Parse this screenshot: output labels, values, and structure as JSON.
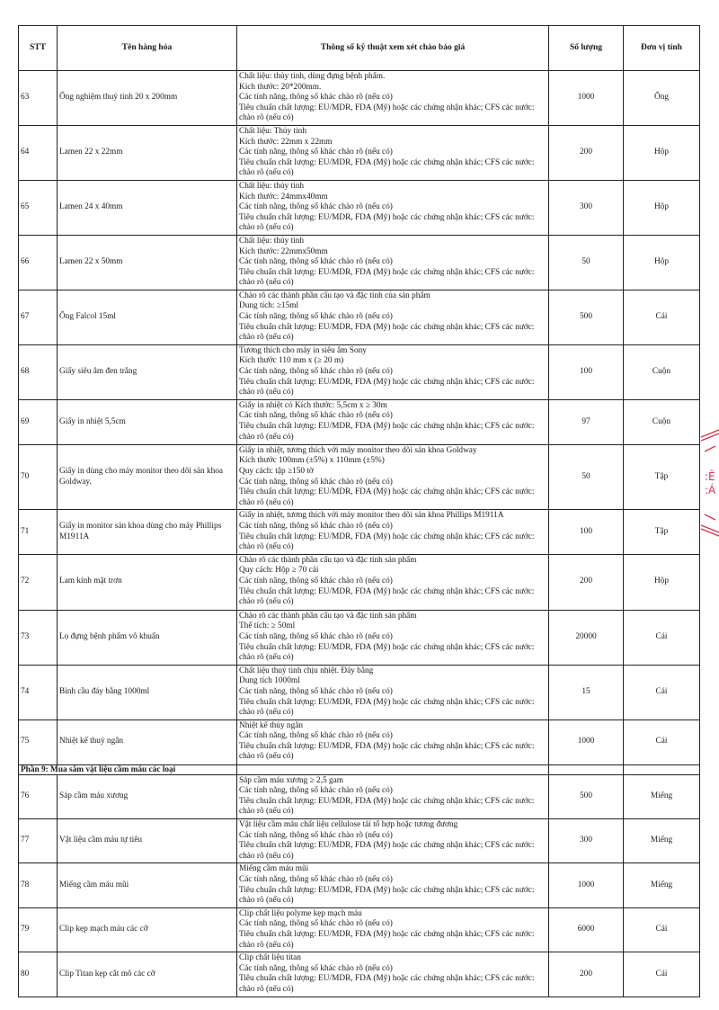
{
  "table": {
    "headers": [
      "STT",
      "Tên hàng hóa",
      "Thông số kỹ thuật xem xét chào báo giá",
      "Số lượng",
      "Đơn vị tính"
    ],
    "rows": [
      {
        "stt": "63",
        "name": "Ống nghiệm thuỷ tinh 20 x 200mm",
        "spec": [
          "Chất liệu: thủy tinh, dùng đựng bệnh phẩm.",
          "Kích thước: 20*200mm.",
          "Các tính năng, thông số khác chào rõ (nếu có)",
          "Tiêu chuẩn chất lượng: EU/MDR, FDA (Mỹ) hoặc các chứng nhận khác; CFS các nước: chào rõ (nếu có)"
        ],
        "qty": "1000",
        "unit": "Ống"
      },
      {
        "stt": "64",
        "name": "Lamen 22 x 22mm",
        "spec": [
          "Chất liệu: Thủy tinh",
          "Kích thước: 22mm x 22mm",
          "Các tính năng, thông số khác chào rõ (nếu có)",
          "Tiêu chuẩn chất lượng: EU/MDR, FDA (Mỹ) hoặc các chứng nhận khác; CFS các nước: chào rõ (nếu có)"
        ],
        "qty": "200",
        "unit": "Hộp"
      },
      {
        "stt": "65",
        "name": "Lamen 24 x 40mm",
        "spec": [
          "Chất liệu: thủy tinh",
          "Kích thước: 24mmx40mm",
          "Các tính năng, thông số khác chào rõ (nếu có)",
          "Tiêu chuẩn chất lượng: EU/MDR, FDA (Mỹ) hoặc các chứng nhận khác; CFS các nước: chào rõ (nếu có)"
        ],
        "qty": "300",
        "unit": "Hộp"
      },
      {
        "stt": "66",
        "name": "Lamen 22 x 50mm",
        "spec": [
          "Chất liệu: thủy tinh",
          "Kích thước: 22mmx50mm",
          "Các tính năng, thông số khác chào rõ (nếu có)",
          "Tiêu chuẩn chất lượng: EU/MDR, FDA (Mỹ) hoặc các chứng nhận khác; CFS các nước: chào rõ (nếu có)"
        ],
        "qty": "50",
        "unit": "Hộp"
      },
      {
        "stt": "67",
        "name": "Ống Falcol 15ml",
        "spec": [
          "Chào rõ các thành phần cấu tạo và đặc tính của sản phẩm",
          "Dung tích: ≥15ml",
          "Các tính năng, thông số khác chào rõ (nếu có)",
          "Tiêu chuẩn chất lượng: EU/MDR, FDA (Mỹ) hoặc các chứng nhận khác; CFS các nước: chào rõ (nếu có)"
        ],
        "qty": "500",
        "unit": "Cái"
      },
      {
        "stt": "68",
        "name": "Giấy siêu âm đen trắng",
        "spec": [
          "Tương thích cho máy in siêu âm Sony",
          "Kích thước 110 mm x (≥ 20 m)",
          "Các tính năng, thông số khác chào rõ (nếu có)",
          "Tiêu chuẩn chất lượng: EU/MDR, FDA (Mỹ) hoặc các chứng nhận khác; CFS các nước: chào rõ (nếu có)"
        ],
        "qty": "100",
        "unit": "Cuộn"
      },
      {
        "stt": "69",
        "name": "Giấy in nhiệt 5,5cm",
        "spec": [
          "Giấy in nhiệt có Kích thước: 5,5cm  x ≥ 30m",
          "Các tính năng, thông số khác chào rõ (nếu có)",
          "Tiêu chuẩn chất lượng: EU/MDR, FDA (Mỹ) hoặc các chứng nhận khác; CFS các nước: chào rõ (nếu có)"
        ],
        "qty": "97",
        "unit": "Cuộn"
      },
      {
        "stt": "70",
        "name": "Giấy in dùng cho máy monitor theo dõi sản khoa Goldway.",
        "spec": [
          "Giấy in nhiệt, tương thích với máy monitor theo dõi sản khoa Goldway",
          "Kích thước 100mm  (±5%) x 110mm (±5%)",
          "Quy cách: tập ≥150 tờ",
          "Các tính năng, thông số khác chào rõ (nếu có)",
          "Tiêu chuẩn chất lượng: EU/MDR, FDA (Mỹ) hoặc các chứng nhận khác; CFS các nước: chào rõ (nếu có)"
        ],
        "qty": "50",
        "unit": "Tập"
      },
      {
        "stt": "71",
        "name": "Giấy in monitor sản khoa dùng cho máy Phillips M1911A",
        "spec": [
          "Giấy in nhiệt, tương thích với máy monitor theo dõi sản khoa Phillips M1911A",
          "Các tính năng, thông số khác chào rõ (nếu có)",
          "Tiêu chuẩn chất lượng: EU/MDR, FDA (Mỹ) hoặc các chứng nhận khác; CFS các nước: chào rõ (nếu có)"
        ],
        "qty": "100",
        "unit": "Tập"
      },
      {
        "stt": "72",
        "name": "Lam kính mặt trơn",
        "spec": [
          "Chào rõ các thành phần cấu tạo và đặc tính sản phẩm",
          "Quy cách: Hộp ≥ 70 cái",
          "Các tính năng, thông số khác chào rõ (nếu có)",
          "Tiêu chuẩn chất lượng: EU/MDR, FDA (Mỹ) hoặc các chứng nhận khác; CFS các nước: chào rõ (nếu có)"
        ],
        "qty": "200",
        "unit": "Hộp"
      },
      {
        "stt": "73",
        "name": "Lọ đựng bệnh phẩm vô khuẩn",
        "spec": [
          "Chào rõ các thành phần cấu tạo và đặc tính sản phẩm",
          "Thể tích: ≥ 50ml",
          "Các tính năng, thông số khác chào rõ (nếu có)",
          "Tiêu chuẩn chất lượng: EU/MDR, FDA (Mỹ) hoặc các chứng nhận khác; CFS các nước: chào rõ (nếu có)"
        ],
        "qty": "20000",
        "unit": "Cái"
      },
      {
        "stt": "74",
        "name": "Bình cầu đáy bằng 1000ml",
        "spec": [
          "Chất liệu thuỷ tinh chịu nhiệt. Đáy bằng",
          "Dung tích 1000ml",
          "Các tính năng, thông số khác chào rõ (nếu có)",
          "Tiêu chuẩn chất lượng: EU/MDR, FDA (Mỹ) hoặc các chứng nhận khác; CFS các nước: chào rõ (nếu có)"
        ],
        "qty": "15",
        "unit": "Cái"
      },
      {
        "stt": "75",
        "name": "Nhiệt kế thuỷ ngân",
        "spec": [
          "Nhiệt kế thủy ngân",
          "Các tính năng, thông số khác chào rõ (nếu có)",
          "Tiêu chuẩn chất lượng: EU/MDR, FDA (Mỹ) hoặc các chứng nhận khác; CFS các nước: chào rõ (nếu có)"
        ],
        "qty": "1000",
        "unit": "Cái"
      },
      {
        "section": "Phần 9: Mua sắm vật liệu cầm máu các loại"
      },
      {
        "stt": "76",
        "name": "Sáp cầm máu xương",
        "spec": [
          "Sáp cầm máu xương ≥ 2,5 gam",
          "Các tính năng, thông số khác chào rõ (nếu có)",
          "Tiêu chuẩn chất lượng: EU/MDR, FDA (Mỹ) hoặc các chứng nhận khác; CFS các nước: chào rõ (nếu có)"
        ],
        "qty": "500",
        "unit": "Miếng"
      },
      {
        "stt": "77",
        "name": "Vật liệu cầm máu tự tiêu",
        "spec": [
          "Vật liệu cầm máu chất liệu cellulose tái tổ hợp hoặc tương đương",
          "Các tính năng, thông số khác chào rõ (nếu có)",
          "Tiêu chuẩn chất lượng: EU/MDR, FDA (Mỹ) hoặc các chứng nhận khác; CFS các nước: chào rõ (nếu có)"
        ],
        "qty": "300",
        "unit": "Miếng"
      },
      {
        "stt": "78",
        "name": "Miếng cầm máu mũi",
        "spec": [
          "Miếng cầm máu mũi",
          "Các tính năng, thông số khác chào rõ (nếu có)",
          "Tiêu chuẩn chất lượng: EU/MDR, FDA (Mỹ) hoặc các chứng nhận khác; CFS các nước: chào rõ (nếu có)"
        ],
        "qty": "1000",
        "unit": "Miếng"
      },
      {
        "stt": "79",
        "name": "Clip kẹp mạch máu các cỡ",
        "spec": [
          "Clip chất liệu polyme kẹp mạch máu",
          "Các tính năng, thông số khác chào rõ (nếu có)",
          "Tiêu chuẩn chất lượng: EU/MDR, FDA (Mỹ) hoặc các chứng nhận khác; CFS các nước: chào rõ (nếu có)"
        ],
        "qty": "6000",
        "unit": "Cái"
      },
      {
        "stt": "80",
        "name": "Clip Titan kẹp cắt mô các cỡ",
        "spec": [
          "Clip chất liệu titan",
          "Các tính năng, thông số khác chào rõ (nếu có)",
          "Tiêu chuẩn chất lượng: EU/MDR, FDA (Mỹ) hoặc các chứng nhận khác; CFS các nước: chào rõ (nếu có)"
        ],
        "qty": "200",
        "unit": "Cái"
      }
    ]
  },
  "stamp": {
    "color": "#d8344a"
  }
}
